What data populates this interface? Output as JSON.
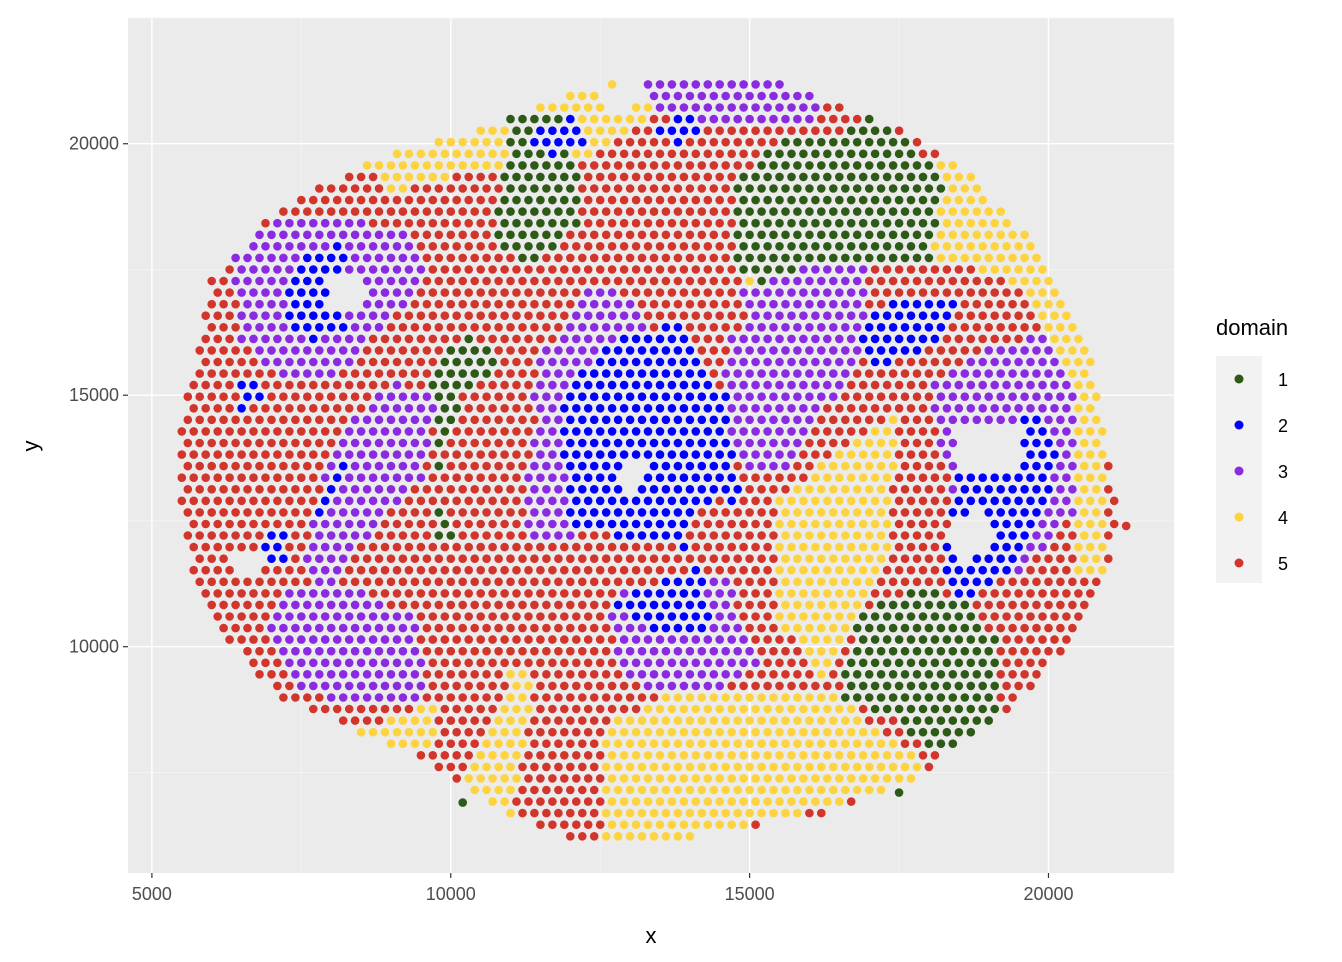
{
  "chart_data": {
    "type": "scatter",
    "title": "",
    "xlabel": "x",
    "ylabel": "y",
    "xlim": [
      4600,
      22100
    ],
    "ylim": [
      5500,
      22500
    ],
    "x_ticks": [
      5000,
      10000,
      15000,
      20000
    ],
    "y_ticks": [
      10000,
      15000,
      20000
    ],
    "grid": true,
    "legend": {
      "title": "domain",
      "placement": "right",
      "entries": [
        {
          "label": "1",
          "color": "#2d5a16"
        },
        {
          "label": "2",
          "color": "#0000ff"
        },
        {
          "label": "3",
          "color": "#8a2be2"
        },
        {
          "label": "4",
          "color": "#fdd33f"
        },
        {
          "label": "5",
          "color": "#d1352b"
        }
      ]
    },
    "grid_spacing": {
      "dx": 200,
      "dy": 230
    },
    "series_note": "Each series is a list of polygon regions (vertices in data units) filled with grid-spaced points; a point belongs to the last region that contains it.",
    "regions": [
      {
        "name": "5",
        "polygon": [
          [
            5500,
            12500
          ],
          [
            5500,
            14500
          ],
          [
            6000,
            17300
          ],
          [
            7200,
            18800
          ],
          [
            9000,
            19800
          ],
          [
            11000,
            20500
          ],
          [
            13000,
            21400
          ],
          [
            15000,
            21400
          ],
          [
            17000,
            20600
          ],
          [
            18500,
            19600
          ],
          [
            20000,
            17700
          ],
          [
            20700,
            16000
          ],
          [
            21000,
            14000
          ],
          [
            21200,
            12400
          ],
          [
            20900,
            11200
          ],
          [
            20300,
            10000
          ],
          [
            19600,
            9000
          ],
          [
            18500,
            8000
          ],
          [
            17500,
            7200
          ],
          [
            16000,
            6600
          ],
          [
            14000,
            6200
          ],
          [
            12600,
            6000
          ],
          [
            11000,
            6600
          ],
          [
            9800,
            7600
          ],
          [
            8500,
            8300
          ],
          [
            7200,
            8900
          ],
          [
            6200,
            10200
          ],
          [
            5700,
            11400
          ]
        ]
      },
      {
        "name": "4",
        "polygon": [
          [
            8200,
            20000
          ],
          [
            9500,
            21000
          ],
          [
            11500,
            21800
          ],
          [
            14000,
            21200
          ],
          [
            12500,
            19800
          ],
          [
            10500,
            19500
          ],
          [
            9000,
            19000
          ]
        ]
      },
      {
        "name": "4",
        "polygon": [
          [
            17400,
            19500
          ],
          [
            18500,
            19600
          ],
          [
            19800,
            18200
          ],
          [
            20700,
            16400
          ],
          [
            21000,
            13800
          ],
          [
            21000,
            11500
          ],
          [
            20400,
            11500
          ],
          [
            20500,
            15000
          ],
          [
            19500,
            17200
          ],
          [
            17400,
            18000
          ]
        ]
      },
      {
        "name": "4",
        "polygon": [
          [
            15500,
            13000
          ],
          [
            17500,
            14700
          ],
          [
            17300,
            11800
          ],
          [
            16300,
            9600
          ],
          [
            16200,
            9200
          ],
          [
            14000,
            9200
          ],
          [
            12600,
            8500
          ],
          [
            12600,
            6000
          ],
          [
            14000,
            6200
          ],
          [
            16000,
            6700
          ],
          [
            17500,
            7200
          ],
          [
            18100,
            7500
          ],
          [
            17200,
            8300
          ],
          [
            16300,
            9200
          ],
          [
            15500,
            10500
          ]
        ]
      },
      {
        "name": "4",
        "polygon": [
          [
            10200,
            7100
          ],
          [
            11000,
            9500
          ],
          [
            11400,
            9500
          ],
          [
            11000,
            6500
          ],
          [
            10200,
            6700
          ]
        ]
      },
      {
        "name": "4",
        "polygon": [
          [
            8200,
            8300
          ],
          [
            9800,
            8900
          ],
          [
            9800,
            7900
          ],
          [
            8200,
            7900
          ]
        ]
      },
      {
        "name": "4",
        "polygon": [
          [
            14700,
            17300
          ],
          [
            16000,
            17300
          ],
          [
            16000,
            16600
          ],
          [
            14700,
            16600
          ]
        ]
      },
      {
        "name": "1",
        "polygon": [
          [
            10700,
            18000
          ],
          [
            11000,
            20600
          ],
          [
            12000,
            20600
          ],
          [
            12200,
            18500
          ],
          [
            11400,
            17500
          ]
        ]
      },
      {
        "name": "1",
        "polygon": [
          [
            14600,
            19000
          ],
          [
            14600,
            17300
          ],
          [
            16200,
            17200
          ],
          [
            17000,
            17600
          ],
          [
            18000,
            17600
          ],
          [
            18300,
            19400
          ],
          [
            17000,
            20600
          ],
          [
            16300,
            20100
          ],
          [
            15500,
            20100
          ]
        ]
      },
      {
        "name": "1",
        "polygon": [
          [
            9600,
            15400
          ],
          [
            10200,
            16200
          ],
          [
            10900,
            15700
          ],
          [
            10700,
            14000
          ],
          [
            10200,
            12200
          ],
          [
            9700,
            12200
          ],
          [
            9800,
            14500
          ]
        ]
      },
      {
        "name": "1",
        "polygon": [
          [
            16500,
            9000
          ],
          [
            16800,
            10600
          ],
          [
            17800,
            11200
          ],
          [
            18600,
            10900
          ],
          [
            19200,
            10000
          ],
          [
            19200,
            8200
          ],
          [
            18200,
            7800
          ],
          [
            17500,
            8500
          ]
        ]
      },
      {
        "name": "3",
        "polygon": [
          [
            6300,
            17700
          ],
          [
            7000,
            18500
          ],
          [
            8200,
            18500
          ],
          [
            9300,
            18300
          ],
          [
            9600,
            17400
          ],
          [
            9000,
            16500
          ],
          [
            8200,
            15500
          ],
          [
            7400,
            15200
          ],
          [
            6500,
            16000
          ]
        ]
      },
      {
        "name": "3",
        "polygon": [
          [
            7700,
            12800
          ],
          [
            8200,
            14400
          ],
          [
            9000,
            15300
          ],
          [
            9800,
            14900
          ],
          [
            9500,
            13300
          ],
          [
            8700,
            12300
          ],
          [
            8100,
            11500
          ],
          [
            7500,
            11500
          ]
        ]
      },
      {
        "name": "3",
        "polygon": [
          [
            7100,
            11000
          ],
          [
            8000,
            11400
          ],
          [
            9400,
            10600
          ],
          [
            9600,
            9000
          ],
          [
            8400,
            8800
          ],
          [
            7500,
            9200
          ],
          [
            6900,
            10200
          ]
        ]
      },
      {
        "name": "3",
        "polygon": [
          [
            11500,
            15800
          ],
          [
            12400,
            17200
          ],
          [
            13200,
            16800
          ],
          [
            13400,
            15000
          ],
          [
            12600,
            13200
          ],
          [
            12000,
            12000
          ],
          [
            11200,
            12000
          ],
          [
            11000,
            13800
          ]
        ]
      },
      {
        "name": "3",
        "polygon": [
          [
            13000,
            21800
          ],
          [
            14000,
            21900
          ],
          [
            15200,
            21700
          ],
          [
            16200,
            21300
          ],
          [
            16200,
            20500
          ],
          [
            15500,
            20300
          ],
          [
            14000,
            20500
          ],
          [
            12800,
            21000
          ]
        ]
      },
      {
        "name": "3",
        "polygon": [
          [
            14800,
            17000
          ],
          [
            16000,
            17600
          ],
          [
            17000,
            17700
          ],
          [
            16900,
            15800
          ],
          [
            16300,
            14800
          ],
          [
            15700,
            13600
          ],
          [
            14900,
            13400
          ],
          [
            14500,
            14800
          ]
        ]
      },
      {
        "name": "3",
        "polygon": [
          [
            18000,
            15200
          ],
          [
            19000,
            16000
          ],
          [
            20000,
            16200
          ],
          [
            20500,
            15200
          ],
          [
            20400,
            12600
          ],
          [
            19500,
            11400
          ],
          [
            18600,
            11600
          ]
        ]
      },
      {
        "name": "3",
        "polygon": [
          [
            12600,
            11000
          ],
          [
            14600,
            11400
          ],
          [
            15200,
            9600
          ],
          [
            14100,
            9000
          ],
          [
            12900,
            9300
          ]
        ]
      },
      {
        "name": "2",
        "polygon": [
          [
            7200,
            16700
          ],
          [
            7500,
            17900
          ],
          [
            8300,
            18000
          ],
          [
            8300,
            16400
          ],
          [
            7600,
            16000
          ]
        ]
      },
      {
        "name": "2",
        "polygon": [
          [
            6500,
            15200
          ],
          [
            6900,
            15500
          ],
          [
            6900,
            14800
          ],
          [
            6500,
            14700
          ]
        ]
      },
      {
        "name": "2",
        "polygon": [
          [
            7600,
            12600
          ],
          [
            8200,
            13900
          ],
          [
            8400,
            13600
          ],
          [
            8000,
            12700
          ]
        ]
      },
      {
        "name": "2",
        "polygon": [
          [
            6800,
            11600
          ],
          [
            6900,
            12300
          ],
          [
            7300,
            12200
          ],
          [
            7300,
            11700
          ]
        ]
      },
      {
        "name": "2",
        "polygon": [
          [
            11800,
            15000
          ],
          [
            12800,
            16200
          ],
          [
            13800,
            16400
          ],
          [
            14600,
            15000
          ],
          [
            14800,
            13300
          ],
          [
            15000,
            12200
          ],
          [
            14500,
            11800
          ],
          [
            13400,
            12100
          ],
          [
            12000,
            12300
          ]
        ]
      },
      {
        "name": "2",
        "polygon": [
          [
            13200,
            11200
          ],
          [
            14200,
            11600
          ],
          [
            14400,
            10400
          ],
          [
            13400,
            10200
          ],
          [
            12700,
            10800
          ]
        ]
      },
      {
        "name": "2",
        "polygon": [
          [
            16800,
            16300
          ],
          [
            17400,
            16900
          ],
          [
            18500,
            16900
          ],
          [
            18300,
            16200
          ],
          [
            17700,
            15800
          ],
          [
            17000,
            15500
          ]
        ]
      },
      {
        "name": "2",
        "polygon": [
          [
            18200,
            11300
          ],
          [
            18500,
            13400
          ],
          [
            19800,
            14800
          ],
          [
            20200,
            13700
          ],
          [
            19600,
            11800
          ],
          [
            18700,
            10900
          ]
        ]
      },
      {
        "name": "2",
        "polygon": [
          [
            11200,
            20200
          ],
          [
            12000,
            20500
          ],
          [
            12300,
            20000
          ],
          [
            11600,
            19700
          ]
        ]
      },
      {
        "name": "2",
        "polygon": [
          [
            13300,
            20200
          ],
          [
            14000,
            20800
          ],
          [
            14200,
            20300
          ],
          [
            13600,
            19800
          ]
        ]
      },
      {
        "name": "5",
        "polygon": [
          [
            9700,
            13000
          ],
          [
            10200,
            15100
          ],
          [
            11000,
            15600
          ],
          [
            11500,
            14800
          ],
          [
            11200,
            13000
          ],
          [
            11300,
            11800
          ],
          [
            10600,
            11500
          ]
        ]
      },
      {
        "name": "5",
        "polygon": [
          [
            13900,
            12400
          ],
          [
            14500,
            13000
          ],
          [
            15000,
            12500
          ],
          [
            14700,
            11800
          ],
          [
            14000,
            11600
          ]
        ]
      },
      {
        "name": "5",
        "polygon": [
          [
            14200,
            16500
          ],
          [
            14200,
            20200
          ],
          [
            14700,
            20000
          ],
          [
            14800,
            17600
          ],
          [
            15000,
            16300
          ]
        ]
      },
      {
        "name": "5",
        "polygon": [
          [
            12200,
            17800
          ],
          [
            12500,
            20000
          ],
          [
            13600,
            20200
          ],
          [
            13800,
            19000
          ],
          [
            13500,
            18000
          ]
        ]
      }
    ],
    "empty_areas": [
      {
        "polygon": [
          [
            12400,
            20900
          ],
          [
            13000,
            21300
          ],
          [
            13400,
            21000
          ],
          [
            12900,
            20600
          ]
        ]
      },
      {
        "polygon": [
          [
            8000,
            17300
          ],
          [
            8600,
            17300
          ],
          [
            8600,
            16800
          ],
          [
            8000,
            16800
          ]
        ]
      },
      {
        "polygon": [
          [
            18300,
            12400
          ],
          [
            18800,
            12700
          ],
          [
            19100,
            12100
          ],
          [
            18600,
            11700
          ]
        ]
      },
      {
        "polygon": [
          [
            18500,
            14500
          ],
          [
            19600,
            14500
          ],
          [
            19600,
            13500
          ],
          [
            18500,
            13500
          ]
        ]
      },
      {
        "polygon": [
          [
            12700,
            13300
          ],
          [
            13000,
            13800
          ],
          [
            13300,
            13500
          ],
          [
            13000,
            13100
          ]
        ]
      },
      {
        "polygon": [
          [
            6400,
            11800
          ],
          [
            6900,
            12000
          ],
          [
            6900,
            11500
          ],
          [
            6400,
            11400
          ]
        ]
      }
    ],
    "extra_points": [
      {
        "x": 10200,
        "y": 6900,
        "series": "1"
      },
      {
        "x": 17500,
        "y": 7100,
        "series": "1"
      },
      {
        "x": 21300,
        "y": 12400,
        "series": "5"
      }
    ]
  }
}
